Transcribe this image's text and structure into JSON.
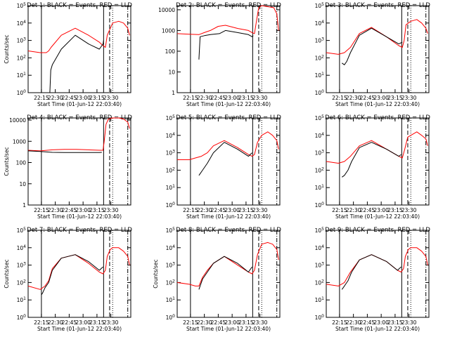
{
  "colors": {
    "events": "#000000",
    "lld": "#ff0000",
    "axis": "#000000",
    "background": "#ffffff"
  },
  "chart_data": [
    {
      "type": "line",
      "title": "Det 1: BLACK = Events, RED = LLD",
      "xlabel": "Start Time (01-Jun-12 22:03:40)",
      "ylabel": "Counts/sec",
      "log_y": true,
      "x_ticks": [
        "22:15",
        "22:30",
        "22:45",
        "23:00",
        "23:15",
        "23:30"
      ],
      "y_ticks": [
        "10^0",
        "10^1",
        "10^2",
        "10^3",
        "10^4",
        "10^5"
      ],
      "ylim_exp": [
        0,
        5
      ],
      "series": [
        {
          "name": "Events",
          "color": "#000000",
          "x": [
            22.0,
            36.0,
            37.5,
            40.0,
            55.0,
            78.0,
            100.0,
            118.0,
            124.0,
            125.0
          ],
          "log_values": [
            0.0,
            0.0,
            1.3,
            1.6,
            2.5,
            3.3,
            2.8,
            2.5,
            2.8,
            3.0
          ]
        },
        {
          "name": "LLD",
          "color": "#ff0000",
          "x": [
            0.0,
            20.0,
            30.0,
            34.0,
            38.0,
            55.0,
            78.0,
            100.0,
            118.0,
            124.0,
            128.0,
            131.0,
            140.0,
            150.0,
            158.0,
            165.0,
            168.0
          ],
          "log_values": [
            2.4,
            2.3,
            2.3,
            2.4,
            2.6,
            3.3,
            3.7,
            3.3,
            2.9,
            2.7,
            2.6,
            3.3,
            4.0,
            4.1,
            4.0,
            3.7,
            3.3
          ]
        }
      ]
    },
    {
      "type": "line",
      "title": "Det 2: BLACK = Events, RED = LLD",
      "xlabel": "Start Time (01-Jun-12 22:03:40)",
      "ylabel": "",
      "log_y": true,
      "x_ticks": [
        "22:15",
        "22:30",
        "22:45",
        "23:00",
        "23:15",
        "23:30"
      ],
      "y_ticks": [
        "1",
        "10",
        "100",
        "1000",
        "10000"
      ],
      "ylim_exp": [
        0,
        4.2
      ],
      "series": [
        {
          "name": "Events",
          "color": "#000000",
          "x": [
            36.0,
            38.0,
            45.0,
            55.0,
            70.0,
            80.0,
            100.0,
            118.0,
            124.0,
            126.0
          ],
          "log_values": [
            1.6,
            2.7,
            2.75,
            2.8,
            2.85,
            3.0,
            2.9,
            2.8,
            2.7,
            2.75
          ]
        },
        {
          "name": "LLD",
          "color": "#ff0000",
          "x": [
            0.0,
            20.0,
            36.0,
            45.0,
            55.0,
            68.0,
            80.0,
            100.0,
            118.0,
            124.0,
            128.0,
            131.0,
            135.0,
            140.0,
            150.0,
            160.0,
            165.0,
            168.0
          ],
          "log_values": [
            2.85,
            2.82,
            2.8,
            2.9,
            3.0,
            3.2,
            3.25,
            3.1,
            3.0,
            2.9,
            2.85,
            3.4,
            4.1,
            4.2,
            4.15,
            4.1,
            3.8,
            3.0
          ]
        }
      ]
    },
    {
      "type": "line",
      "title": "Det 3: BLACK = Events, RED = LLD",
      "xlabel": "Start Time (01-Jun-12 22:03:40)",
      "ylabel": "",
      "log_y": true,
      "x_ticks": [
        "22:15",
        "22:30",
        "22:45",
        "23:00",
        "23:15",
        "23:30"
      ],
      "y_ticks": [
        "10^0",
        "10^1",
        "10^2",
        "10^3",
        "10^4",
        "10^5"
      ],
      "ylim_exp": [
        0,
        5
      ],
      "series": [
        {
          "name": "Events",
          "color": "#000000",
          "x": [
            26.0,
            30.0,
            34.0,
            40.0,
            55.0,
            75.0,
            100.0,
            120.0,
            126.0
          ],
          "log_values": [
            1.7,
            1.6,
            1.8,
            2.3,
            3.3,
            3.7,
            3.2,
            2.8,
            2.9
          ]
        },
        {
          "name": "LLD",
          "color": "#ff0000",
          "x": [
            0.0,
            20.0,
            30.0,
            40.0,
            55.0,
            75.0,
            100.0,
            120.0,
            126.0,
            129.0,
            132.0,
            140.0,
            150.0,
            158.0,
            165.0,
            168.0
          ],
          "log_values": [
            2.3,
            2.2,
            2.3,
            2.6,
            3.4,
            3.75,
            3.2,
            2.7,
            2.6,
            3.0,
            3.9,
            4.1,
            4.2,
            4.0,
            3.7,
            3.4
          ]
        }
      ]
    },
    {
      "type": "line",
      "title": "Det 4: BLACK = Events, RED = LLD",
      "xlabel": "Start Time (01-Jun-12 22:03:40)",
      "ylabel": "Counts/sec",
      "log_y": true,
      "x_ticks": [
        "22:15",
        "22:30",
        "22:45",
        "23:00",
        "23:15",
        "23:30"
      ],
      "y_ticks": [
        "1",
        "10",
        "100",
        "1000",
        "10000"
      ],
      "ylim_exp": [
        0,
        4.1
      ],
      "series": [
        {
          "name": "Events",
          "color": "#000000",
          "x": [
            0.0,
            20.0,
            40.0,
            60.0,
            80.0,
            100.0,
            118.0,
            122.0
          ],
          "log_values": [
            2.55,
            2.52,
            2.48,
            2.47,
            2.47,
            2.47,
            2.47,
            2.48
          ]
        },
        {
          "name": "LLD",
          "color": "#ff0000",
          "x": [
            0.0,
            20.0,
            40.0,
            60.0,
            80.0,
            100.0,
            118.0,
            124.0,
            126.0,
            129.0,
            133.0,
            140.0,
            150.0,
            158.0,
            165.0,
            168.0
          ],
          "log_values": [
            2.58,
            2.55,
            2.6,
            2.62,
            2.62,
            2.6,
            2.58,
            2.58,
            3.0,
            3.8,
            4.05,
            4.1,
            4.1,
            4.05,
            3.9,
            3.6
          ]
        }
      ]
    },
    {
      "type": "line",
      "title": "Det 5: BLACK = Events, RED = LLD",
      "xlabel": "Start Time (01-Jun-12 22:03:40)",
      "ylabel": "",
      "log_y": true,
      "x_ticks": [
        "22:15",
        "22:30",
        "22:45",
        "23:00",
        "23:15",
        "23:30"
      ],
      "y_ticks": [
        "10^0",
        "10^1",
        "10^2",
        "10^3",
        "10^4",
        "10^5"
      ],
      "ylim_exp": [
        0,
        5
      ],
      "series": [
        {
          "name": "Events",
          "color": "#000000",
          "x": [
            36.0,
            38.0,
            42.0,
            50.0,
            60.0,
            78.0,
            100.0,
            118.0,
            124.0
          ],
          "log_values": [
            1.7,
            1.8,
            2.0,
            2.4,
            3.0,
            3.6,
            3.2,
            2.8,
            3.0
          ]
        },
        {
          "name": "LLD",
          "color": "#ff0000",
          "x": [
            0.0,
            20.0,
            30.0,
            40.0,
            50.0,
            60.0,
            78.0,
            100.0,
            118.0,
            124.0,
            128.0,
            133.0,
            140.0,
            150.0,
            158.0,
            165.0,
            168.0
          ],
          "log_values": [
            2.6,
            2.6,
            2.7,
            2.8,
            3.0,
            3.4,
            3.7,
            3.3,
            2.9,
            2.8,
            2.9,
            3.6,
            4.0,
            4.2,
            4.0,
            3.7,
            3.2
          ]
        }
      ]
    },
    {
      "type": "line",
      "title": "Det 6: BLACK = Events, RED = LLD",
      "xlabel": "Start Time (01-Jun-12 22:03:40)",
      "ylabel": "",
      "log_y": true,
      "x_ticks": [
        "22:15",
        "22:30",
        "22:45",
        "23:00",
        "23:15",
        "23:30"
      ],
      "y_ticks": [
        "10^0",
        "10^1",
        "10^2",
        "10^3",
        "10^4",
        "10^5"
      ],
      "ylim_exp": [
        0,
        5
      ],
      "series": [
        {
          "name": "Events",
          "color": "#000000",
          "x": [
            26.0,
            30.0,
            36.0,
            42.0,
            55.0,
            75.0,
            100.0,
            120.0,
            124.0
          ],
          "log_values": [
            1.6,
            1.7,
            2.0,
            2.5,
            3.3,
            3.6,
            3.2,
            2.8,
            2.9
          ]
        },
        {
          "name": "LLD",
          "color": "#ff0000",
          "x": [
            0.0,
            20.0,
            30.0,
            40.0,
            55.0,
            75.0,
            100.0,
            120.0,
            126.0,
            130.0,
            135.0,
            140.0,
            150.0,
            158.0,
            165.0,
            168.0
          ],
          "log_values": [
            2.5,
            2.4,
            2.5,
            2.8,
            3.4,
            3.7,
            3.2,
            2.8,
            2.7,
            3.2,
            3.9,
            4.0,
            4.2,
            4.0,
            3.8,
            3.4
          ]
        }
      ]
    },
    {
      "type": "line",
      "title": "Det 7: BLACK = Events, RED = LLD",
      "xlabel": "Start Time (01-Jun-12 22:03:40)",
      "ylabel": "Counts/sec",
      "log_y": true,
      "x_ticks": [
        "22:15",
        "22:30",
        "22:45",
        "23:00",
        "23:15",
        "23:30"
      ],
      "y_ticks": [
        "10^0",
        "10^1",
        "10^2",
        "10^3",
        "10^4",
        "10^5"
      ],
      "ylim_exp": [
        0,
        5
      ],
      "series": [
        {
          "name": "Events",
          "color": "#000000",
          "x": [
            22.0,
            24.0,
            28.0,
            34.0,
            40.0,
            55.0,
            78.0,
            100.0,
            118.0,
            124.0
          ],
          "log_values": [
            1.3,
            1.4,
            1.7,
            2.0,
            2.7,
            3.4,
            3.6,
            3.2,
            2.7,
            2.9
          ]
        },
        {
          "name": "LLD",
          "color": "#ff0000",
          "x": [
            0.0,
            20.0,
            28.0,
            34.0,
            40.0,
            55.0,
            78.0,
            100.0,
            118.0,
            124.0,
            128.0,
            131.0,
            136.0,
            140.0,
            150.0,
            158.0,
            165.0,
            168.0
          ],
          "log_values": [
            1.8,
            1.6,
            1.8,
            2.1,
            2.8,
            3.4,
            3.6,
            3.1,
            2.6,
            2.5,
            2.7,
            3.5,
            3.9,
            4.0,
            4.0,
            3.8,
            3.5,
            3.0
          ]
        }
      ]
    },
    {
      "type": "line",
      "title": "Det 8: BLACK = Events, RED = LLD",
      "xlabel": "Start Time (01-Jun-12 22:03:40)",
      "ylabel": "Counts/sec",
      "log_y": true,
      "x_ticks": [
        "22:15",
        "22:30",
        "22:45",
        "23:00",
        "23:15",
        "23:30"
      ],
      "y_ticks": [
        "10^0",
        "10^1",
        "10^2",
        "10^3",
        "10^4",
        "10^5"
      ],
      "ylim_exp": [
        0,
        5
      ],
      "series": [
        {
          "name": "Events",
          "color": "#000000",
          "x": [
            36.0,
            38.0,
            42.0,
            50.0,
            60.0,
            78.0,
            100.0,
            118.0,
            124.0
          ],
          "log_values": [
            1.6,
            1.8,
            2.2,
            2.6,
            3.1,
            3.5,
            3.1,
            2.6,
            2.9
          ]
        },
        {
          "name": "LLD",
          "color": "#ff0000",
          "x": [
            0.0,
            20.0,
            30.0,
            36.0,
            42.0,
            50.0,
            60.0,
            78.0,
            100.0,
            118.0,
            124.0,
            128.0,
            133.0,
            140.0,
            150.0,
            158.0,
            165.0,
            168.0
          ],
          "log_values": [
            2.0,
            1.9,
            1.8,
            1.8,
            2.3,
            2.7,
            3.1,
            3.5,
            3.0,
            2.6,
            2.5,
            2.7,
            3.6,
            4.2,
            4.3,
            4.2,
            3.9,
            3.3
          ]
        }
      ]
    },
    {
      "type": "line",
      "title": "Det 9: BLACK = Events, RED = LLD",
      "xlabel": "Start Time (01-Jun-12 22:03:40)",
      "ylabel": "",
      "log_y": true,
      "x_ticks": [
        "22:15",
        "22:30",
        "22:45",
        "23:00",
        "23:15",
        "23:30"
      ],
      "y_ticks": [
        "10^0",
        "10^1",
        "10^2",
        "10^3",
        "10^4",
        "10^5"
      ],
      "ylim_exp": [
        0,
        5
      ],
      "series": [
        {
          "name": "Events",
          "color": "#000000",
          "x": [
            26.0,
            30.0,
            36.0,
            42.0,
            55.0,
            75.0,
            100.0,
            118.0,
            124.0
          ],
          "log_values": [
            1.6,
            1.8,
            2.1,
            2.6,
            3.3,
            3.6,
            3.2,
            2.7,
            2.9
          ]
        },
        {
          "name": "LLD",
          "color": "#ff0000",
          "x": [
            0.0,
            20.0,
            30.0,
            40.0,
            55.0,
            75.0,
            100.0,
            118.0,
            124.0,
            128.0,
            131.0,
            136.0,
            140.0,
            150.0,
            158.0,
            165.0,
            168.0
          ],
          "log_values": [
            1.9,
            1.8,
            2.0,
            2.6,
            3.3,
            3.6,
            3.2,
            2.7,
            2.6,
            2.8,
            3.5,
            3.9,
            4.0,
            4.0,
            3.8,
            3.5,
            3.0
          ]
        }
      ]
    }
  ]
}
